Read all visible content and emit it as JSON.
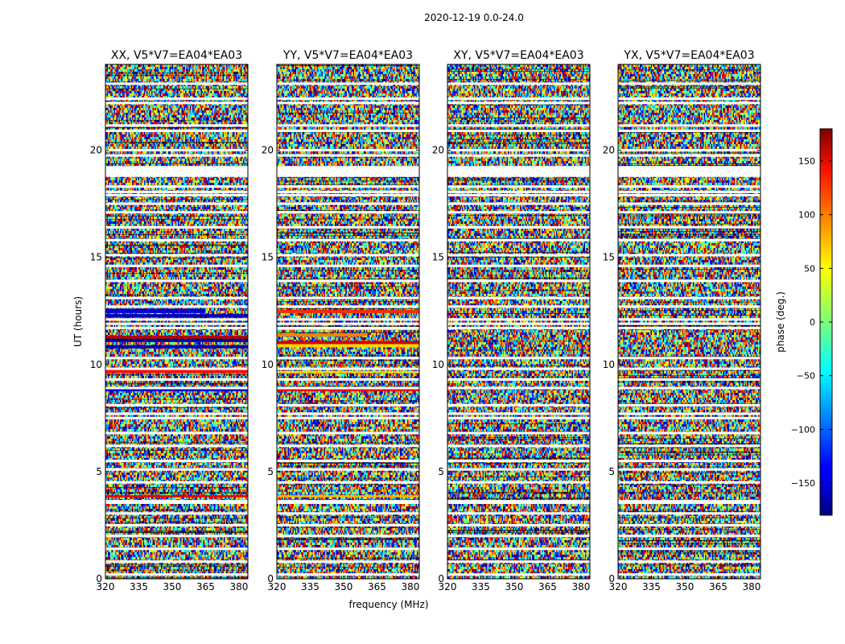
{
  "chart_data": {
    "type": "heatmap",
    "suptitle": "2020-12-19 0.0-24.0",
    "xlabel": "frequency (MHz)",
    "ylabel": "UT (hours)",
    "xlim": [
      320,
      384
    ],
    "ylim": [
      0,
      24
    ],
    "xticks": [
      320,
      335,
      350,
      365,
      380
    ],
    "yticks": [
      0,
      5,
      10,
      15,
      20
    ],
    "panels": [
      {
        "title": "XX, V5*V7=EA04*EA03",
        "show_ylabel": true,
        "coherent_bands": [
          {
            "t0": 12.4,
            "t1": 12.6,
            "phase": -150,
            "f1": 365
          },
          {
            "t0": 12.2,
            "t1": 12.35,
            "phase": -160,
            "f1": 384
          },
          {
            "t0": 11.2,
            "t1": 11.35,
            "phase": 160,
            "f1": 384
          },
          {
            "t0": 11.05,
            "t1": 11.2,
            "phase": -170,
            "f1": 384
          },
          {
            "t0": 10.75,
            "t1": 10.9,
            "phase": -160,
            "f1": 384
          },
          {
            "t0": 9.6,
            "t1": 9.75,
            "phase": 130,
            "f1": 384
          },
          {
            "t0": 8.75,
            "t1": 8.85,
            "phase": -150,
            "f1": 384
          },
          {
            "t0": 3.8,
            "t1": 3.9,
            "phase": 140,
            "f1": 384
          }
        ]
      },
      {
        "title": "YY, V5*V7=EA04*EA03",
        "show_ylabel": false,
        "coherent_bands": [
          {
            "t0": 12.4,
            "t1": 12.55,
            "phase": 120,
            "f1": 384
          },
          {
            "t0": 11.6,
            "t1": 11.75,
            "phase": 60,
            "f1": 384
          },
          {
            "t0": 11.3,
            "t1": 11.45,
            "phase": 90,
            "f1": 360
          },
          {
            "t0": 10.95,
            "t1": 11.1,
            "phase": 150,
            "f1": 384
          },
          {
            "t0": 10.8,
            "t1": 10.95,
            "phase": 60,
            "f1": 384
          },
          {
            "t0": 9.6,
            "t1": 9.7,
            "phase": 60,
            "f1": 384
          },
          {
            "t0": 8.75,
            "t1": 8.85,
            "phase": 140,
            "f1": 384
          },
          {
            "t0": 3.8,
            "t1": 3.9,
            "phase": 70,
            "f1": 384
          }
        ]
      },
      {
        "title": "XY, V5*V7=EA04*EA03",
        "show_ylabel": false,
        "coherent_bands": []
      },
      {
        "title": "YX, V5*V7=EA04*EA03",
        "show_ylabel": false,
        "coherent_bands": []
      }
    ],
    "flagged_rows_hours": [
      0.2,
      0.8,
      1.4,
      2.0,
      2.5,
      3.05,
      3.55,
      3.62,
      4.5,
      5.1,
      5.5,
      6.2,
      6.8,
      7.5,
      7.7,
      8.1,
      8.9,
      9.3,
      9.8,
      10.3,
      11.7,
      11.9,
      12.1,
      12.7,
      13.1,
      13.9,
      14.6,
      15.1,
      15.8,
      16.4,
      17.1,
      17.5,
      17.9,
      18.05,
      18.3,
      18.9,
      19.0,
      19.2,
      19.75,
      20.0,
      20.9,
      21.15,
      22.2,
      22.4,
      23.1
    ],
    "colorbar": {
      "label": "phase (deg.)",
      "range": [
        -180,
        180
      ],
      "ticks": [
        -150,
        -100,
        -50,
        0,
        50,
        100,
        150
      ],
      "tick_labels": [
        "−150",
        "−100",
        "−50",
        "0",
        "50",
        "100",
        "150"
      ],
      "colormap": "jet"
    }
  }
}
